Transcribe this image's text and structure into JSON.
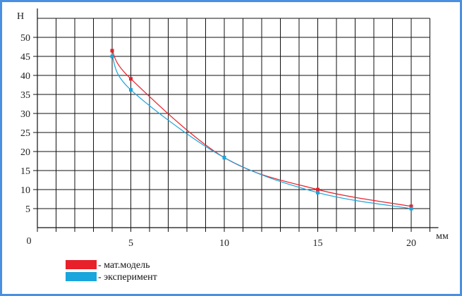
{
  "chart_data": {
    "type": "line",
    "ylabel": "Н",
    "xlabel": "мм",
    "origin_label": "0",
    "xlim": [
      0,
      21
    ],
    "ylim": [
      0,
      55
    ],
    "x_ticks": [
      5,
      10,
      15,
      20
    ],
    "y_ticks": [
      5,
      10,
      15,
      20,
      25,
      30,
      35,
      40,
      45,
      50
    ],
    "x_minor_step": 1,
    "grid": true,
    "legend_position": "bottom-left",
    "series": [
      {
        "name": "- мат.модель",
        "color": "#e8202a",
        "x": [
          4,
          5,
          10,
          15,
          20
        ],
        "y": [
          46.5,
          39.1,
          18.4,
          10,
          5.6
        ]
      },
      {
        "name": "- эксперимент",
        "color": "#1aa5dc",
        "x": [
          4,
          5,
          10,
          15,
          20
        ],
        "y": [
          45,
          36.2,
          18.4,
          9.2,
          5
        ]
      }
    ]
  },
  "colors": {
    "frame": "#4a8fe0",
    "grid": "#111111",
    "text": "#222222"
  }
}
